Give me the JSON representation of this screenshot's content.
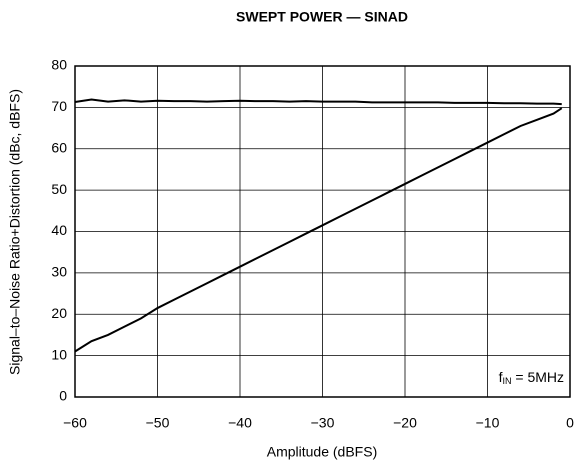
{
  "chart_data": {
    "type": "line",
    "title": "SWEPT POWER — SINAD",
    "xlabel": "Amplitude (dBFS)",
    "ylabel": "Signal–to–Noise Ratio+Distortion (dBc, dBFS)",
    "annotation": [
      "f",
      "IN",
      " = 5MHz"
    ],
    "x": [
      -60,
      -58,
      -56,
      -54,
      -52,
      -50,
      -48,
      -46,
      -44,
      -42,
      -40,
      -38,
      -36,
      -34,
      -32,
      -30,
      -28,
      -26,
      -24,
      -22,
      -20,
      -18,
      -16,
      -14,
      -12,
      -10,
      -8,
      -6,
      -4,
      -2,
      -1
    ],
    "series": [
      {
        "color": "#000000",
        "values": [
          71.3,
          71.9,
          71.4,
          71.7,
          71.4,
          71.6,
          71.5,
          71.5,
          71.4,
          71.5,
          71.6,
          71.5,
          71.5,
          71.4,
          71.5,
          71.4,
          71.4,
          71.4,
          71.2,
          71.2,
          71.2,
          71.2,
          71.2,
          71.1,
          71.1,
          71.1,
          71.0,
          71.0,
          70.9,
          70.9,
          70.8
        ]
      },
      {
        "color": "#000000",
        "values": [
          11,
          13.5,
          15,
          17,
          19,
          21.5,
          23.5,
          25.5,
          27.5,
          29.5,
          31.5,
          33.5,
          35.5,
          37.5,
          39.5,
          41.5,
          43.5,
          45.5,
          47.5,
          49.5,
          51.5,
          53.5,
          55.5,
          57.5,
          59.5,
          61.5,
          63.5,
          65.5,
          67,
          68.5,
          69.8
        ]
      }
    ],
    "xlim": [
      -60,
      0
    ],
    "ylim": [
      0,
      80
    ],
    "xticks": [
      {
        "value": -60,
        "label": "−60"
      },
      {
        "value": -50,
        "label": "−50"
      },
      {
        "value": -40,
        "label": "−40"
      },
      {
        "value": -30,
        "label": "−30"
      },
      {
        "value": -20,
        "label": "−20"
      },
      {
        "value": -10,
        "label": "−10"
      },
      0
    ],
    "yticks": [
      0,
      10,
      20,
      30,
      40,
      50,
      60,
      70,
      80
    ],
    "grid": true
  }
}
